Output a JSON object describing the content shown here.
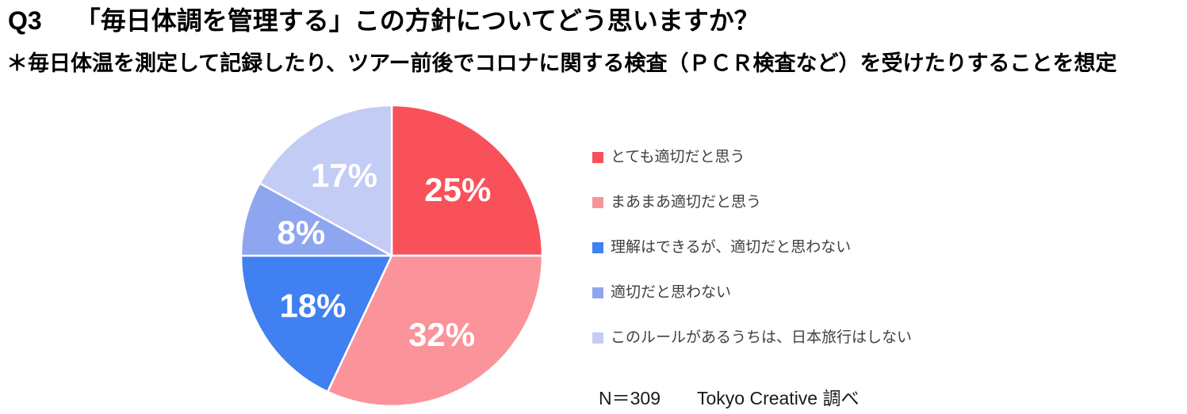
{
  "header": {
    "question_number": "Q3",
    "title": "「毎日体調を管理する」この方針についてどう思いますか？",
    "subtitle": "＊毎日体温を測定して記録したり、ツアー前後でコロナに関する検査（ＰＣＲ検査など）を受けたりすることを想定"
  },
  "chart_data": {
    "type": "pie",
    "title": "「毎日体調を管理する」この方針についてどう思いますか？",
    "direction": "clockwise",
    "start_angle_deg": 0,
    "legend_position": "right",
    "label_color": "#FFFFFF",
    "slices": [
      {
        "label": "とても適切だと思う",
        "value": 25,
        "display": "25%",
        "color": "#F8515A"
      },
      {
        "label": "まあまあ適切だと思う",
        "value": 32,
        "display": "32%",
        "color": "#FA949A"
      },
      {
        "label": "理解はできるが、適切だと思わない",
        "value": 18,
        "display": "18%",
        "color": "#4180F0"
      },
      {
        "label": "適切だと思わない",
        "value": 8,
        "display": "8%",
        "color": "#8EA6F0"
      },
      {
        "label": "このルールがあるうちは、日本旅行はしない",
        "value": 17,
        "display": "17%",
        "color": "#C3CCF5"
      }
    ]
  },
  "footer": {
    "sample_size": "N＝309",
    "source": "Tokyo Creative 調べ"
  }
}
